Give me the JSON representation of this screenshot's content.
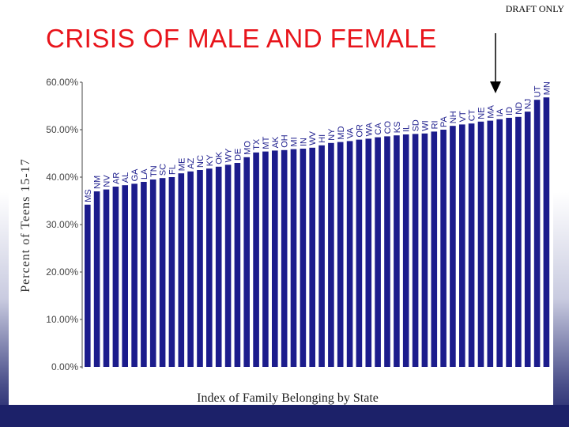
{
  "draft_label": "DRAFT ONLY",
  "slide_title": "CRISIS OF MALE AND FEMALE",
  "chart_data": {
    "type": "bar",
    "title": "",
    "xlabel": "Index of Family Belonging by State",
    "ylabel": "Percent of Teens 15-17",
    "ylim": [
      0,
      60
    ],
    "y_ticks": [
      0,
      10,
      20,
      30,
      40,
      50,
      60
    ],
    "y_tick_labels": [
      "0.00%",
      "10.00%",
      "20.00%",
      "30.00%",
      "40.00%",
      "50.00%",
      "60.00%"
    ],
    "grid": false,
    "bar_color": "#1c1c8c",
    "categories": [
      "MS",
      "NM",
      "NV",
      "AR",
      "AL",
      "GA",
      "LA",
      "TN",
      "SC",
      "FL",
      "ME",
      "AZ",
      "NC",
      "KY",
      "OK",
      "WY",
      "DE",
      "MO",
      "TX",
      "MT",
      "AK",
      "OH",
      "MI",
      "IN",
      "WV",
      "HI",
      "NY",
      "MD",
      "VA",
      "OR",
      "WA",
      "CA",
      "CO",
      "KS",
      "IL",
      "SD",
      "WI",
      "RI",
      "PA",
      "NH",
      "VT",
      "CT",
      "NE",
      "MA",
      "IA",
      "ID",
      "ND",
      "NJ",
      "UT",
      "MN"
    ],
    "values": [
      34.2,
      37.0,
      37.4,
      38.0,
      38.3,
      38.6,
      39.0,
      39.5,
      39.8,
      40.0,
      40.8,
      41.2,
      41.5,
      41.8,
      42.2,
      42.6,
      43.0,
      44.2,
      45.2,
      45.4,
      45.6,
      45.7,
      45.9,
      46.0,
      46.2,
      46.7,
      47.2,
      47.4,
      47.6,
      47.9,
      48.1,
      48.4,
      48.6,
      48.8,
      49.0,
      49.1,
      49.2,
      49.6,
      50.0,
      50.8,
      51.1,
      51.3,
      51.7,
      51.9,
      52.2,
      52.5,
      52.7,
      53.8,
      56.3,
      56.8
    ],
    "annotation": "arrow pointing down at ND"
  }
}
